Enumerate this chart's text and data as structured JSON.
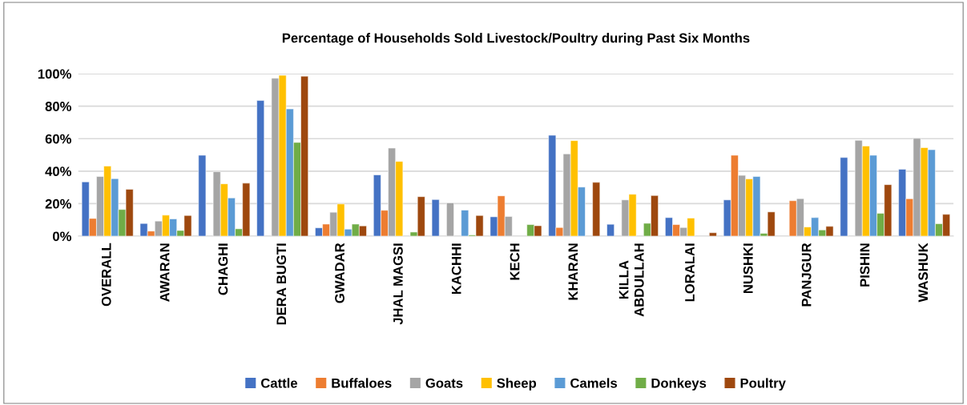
{
  "chart_data": {
    "type": "bar",
    "title": "Percentage of Households Sold Livestock/Poultry during Past Six Months",
    "categories": [
      "OVERALL",
      "AWARAN",
      "CHAGHI",
      "DERA BUGTI",
      "GWADAR",
      "JHAL MAGSI",
      "KACHHI",
      "KECH",
      "KHARAN",
      "KILLA\nABDULLAH",
      "LORALAI",
      "NUSHKI",
      "PANJGUR",
      "PISHIN",
      "WASHUK"
    ],
    "series": [
      {
        "name": "Cattle",
        "color": "#4472c4",
        "values": [
          33.4,
          7.8,
          49.8,
          83.5,
          5.1,
          37.7,
          22.5,
          11.9,
          62.1,
          7.3,
          11.4,
          22.3,
          null,
          48.4,
          41.2
        ]
      },
      {
        "name": "Buffaloes",
        "color": "#ed7d31",
        "values": [
          10.9,
          3.1,
          null,
          null,
          7.4,
          15.9,
          null,
          24.8,
          5.3,
          null,
          7.1,
          49.8,
          21.8,
          null,
          23.0
        ]
      },
      {
        "name": "Goats",
        "color": "#a5a5a5",
        "values": [
          36.7,
          9.3,
          39.7,
          97.2,
          14.7,
          54.2,
          20.5,
          12.1,
          50.6,
          22.3,
          5.3,
          37.4,
          23.1,
          59.0,
          60.2
        ]
      },
      {
        "name": "Sheep",
        "color": "#ffc000",
        "values": [
          43.1,
          12.9,
          32.2,
          99.0,
          19.8,
          46.0,
          null,
          null,
          58.8,
          25.8,
          11.1,
          35.2,
          5.6,
          55.5,
          54.5
        ]
      },
      {
        "name": "Camels",
        "color": "#5b9bd5",
        "values": [
          35.4,
          10.6,
          23.5,
          78.3,
          4.3,
          null,
          16.0,
          null,
          30.2,
          null,
          null,
          36.7,
          11.4,
          49.8,
          53.2
        ]
      },
      {
        "name": "Donkeys",
        "color": "#70ad47",
        "values": [
          16.4,
          3.5,
          4.5,
          57.7,
          7.4,
          2.5,
          0.7,
          7.1,
          null,
          7.9,
          null,
          1.7,
          3.8,
          14.0,
          7.6
        ]
      },
      {
        "name": "Poultry",
        "color": "#9e480e",
        "values": [
          28.8,
          12.7,
          32.6,
          98.5,
          6.3,
          24.3,
          12.7,
          6.4,
          33.1,
          25.0,
          2.1,
          14.9,
          6.0,
          31.7,
          13.4
        ]
      }
    ],
    "ylim": [
      0,
      100
    ],
    "yticks": [
      {
        "value": 0,
        "label": "0%"
      },
      {
        "value": 20,
        "label": "20%"
      },
      {
        "value": 40,
        "label": "40%"
      },
      {
        "value": 60,
        "label": "60%"
      },
      {
        "value": 80,
        "label": "80%"
      },
      {
        "value": 100,
        "label": "100%"
      }
    ],
    "grid": "y",
    "legend": "bottom"
  }
}
